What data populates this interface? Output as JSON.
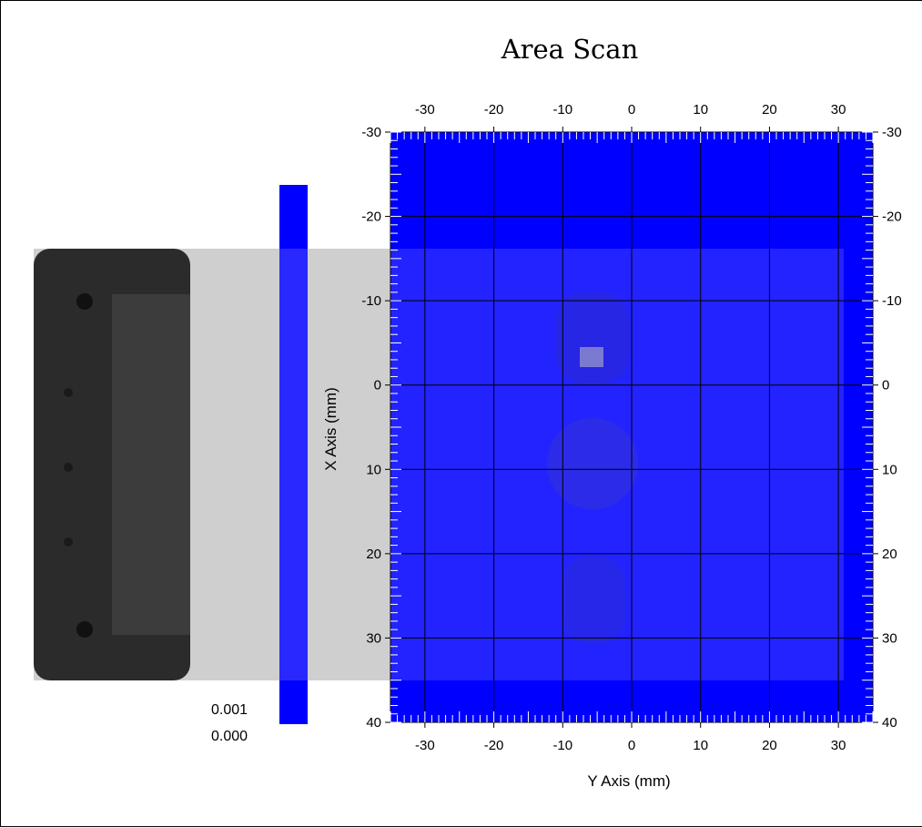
{
  "chart_data": {
    "type": "heatmap",
    "title": "Area Scan",
    "xlabel": "Y Axis (mm)",
    "ylabel": "X Axis (mm)",
    "x_ticks": [
      -30,
      -20,
      -10,
      0,
      10,
      20,
      30
    ],
    "y_ticks": [
      -30,
      -20,
      -10,
      0,
      10,
      20,
      30,
      40
    ],
    "x_tick_labels": [
      "-30",
      "-20",
      "-10",
      "0",
      "10",
      "20",
      "30"
    ],
    "y_tick_labels": [
      "-30",
      "-20",
      "-10",
      "0",
      "10",
      "20",
      "30",
      "40"
    ],
    "right_tick_labels": [
      "-30",
      "-20",
      "-10",
      "0",
      "10",
      "20",
      "30",
      "40"
    ],
    "xlim": [
      -35,
      35
    ],
    "ylim": [
      -30,
      40
    ],
    "grid": true,
    "scan_value": 0.0,
    "colorbar": {
      "labels": [
        "0.001",
        "0.000"
      ],
      "max": 0.001,
      "min": 0.0,
      "color": "#0000ff"
    },
    "colors": {
      "field": "#0000ff",
      "grid": "#000000",
      "overlay_device": "#8a8a8a",
      "overlay_frame": "#d2d2d2"
    }
  }
}
